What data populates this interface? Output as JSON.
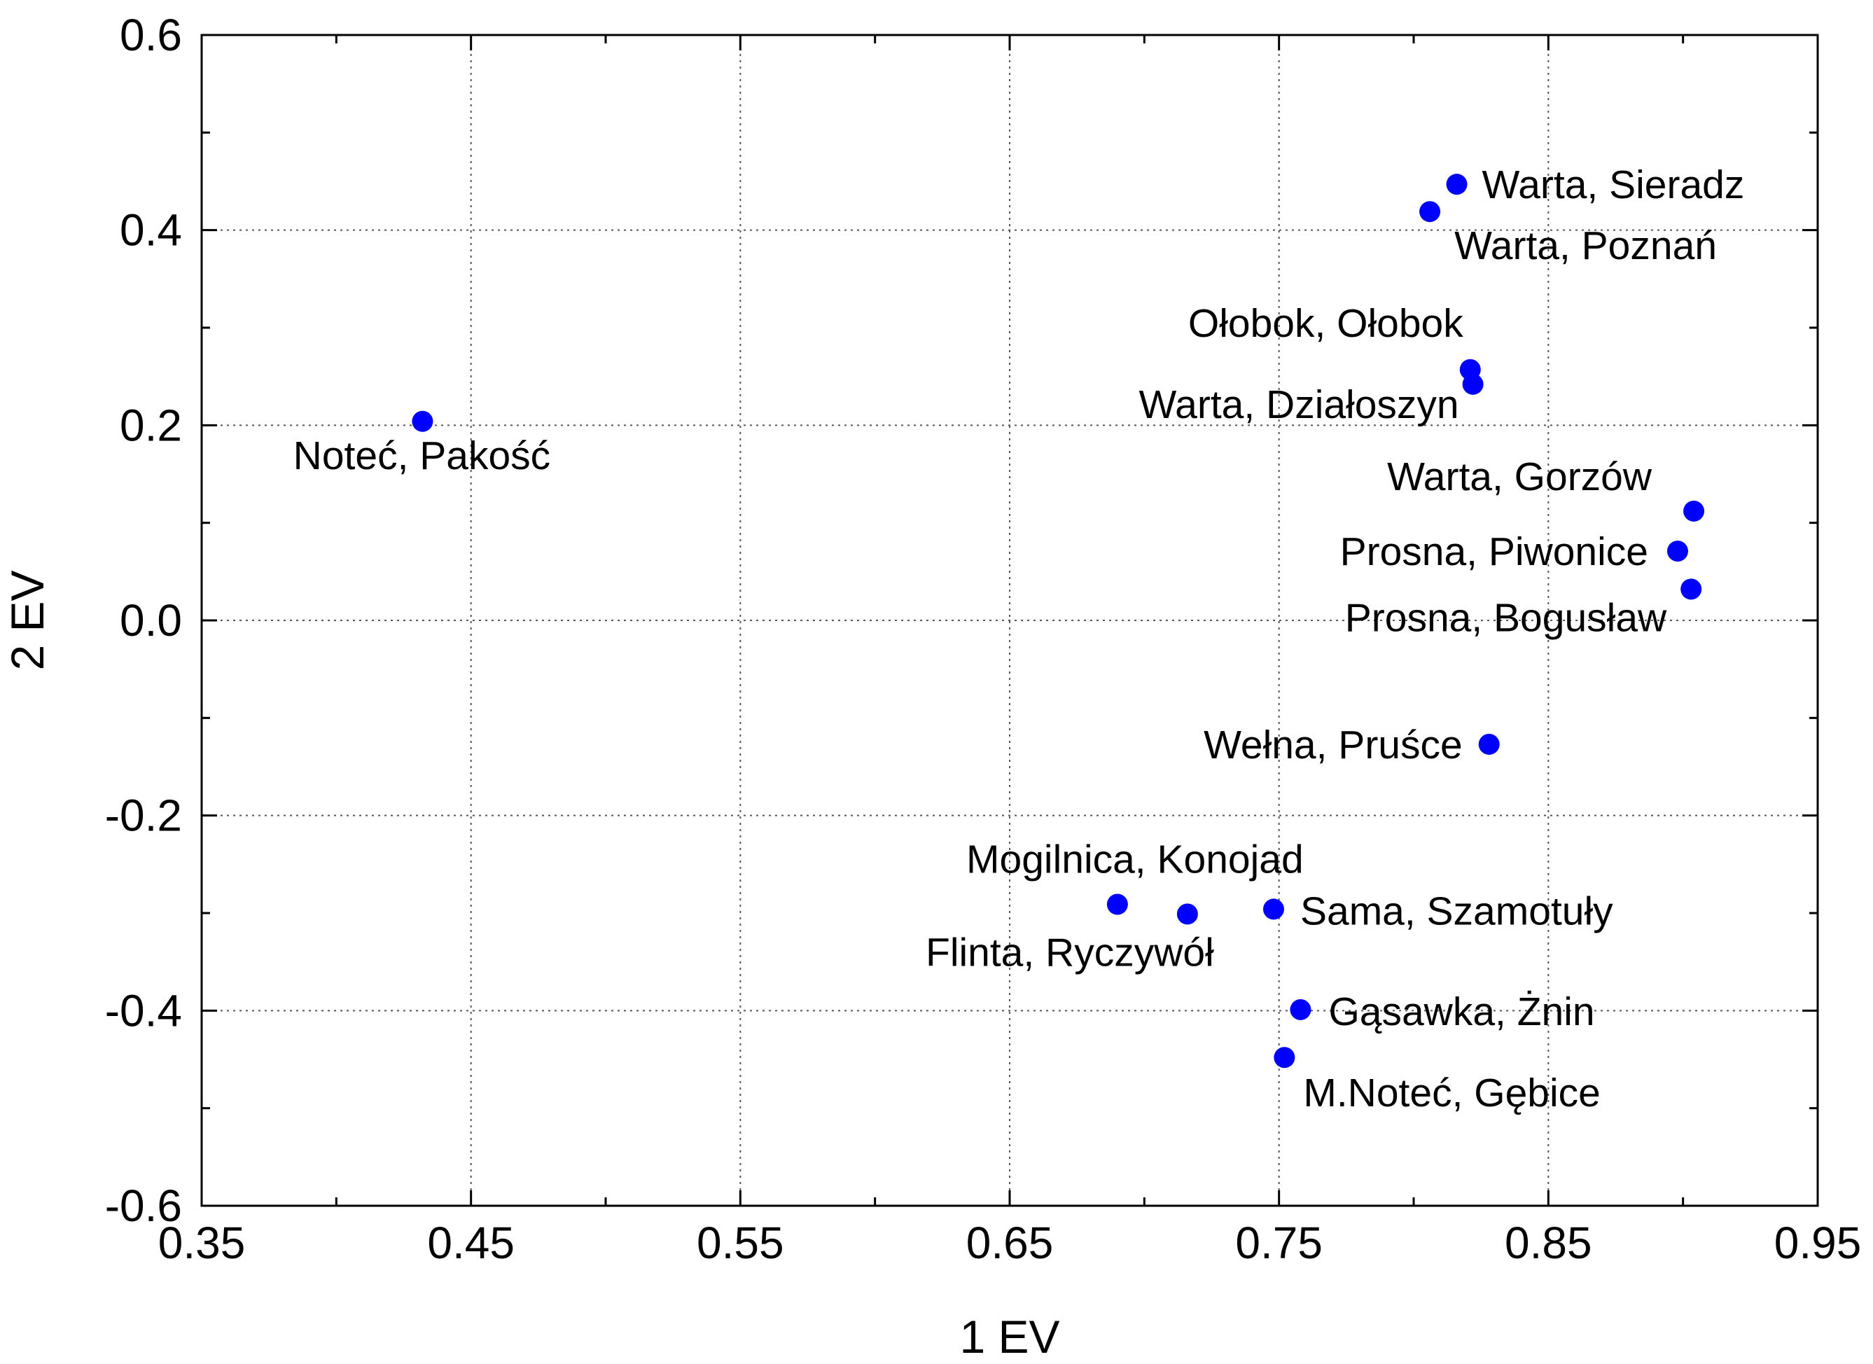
{
  "chart_data": {
    "type": "scatter",
    "title": "",
    "xlabel": "1 EV",
    "ylabel": "2 EV",
    "xlim": [
      0.35,
      0.95
    ],
    "ylim": [
      -0.6,
      0.6
    ],
    "grid": true,
    "x_ticks": [
      0.35,
      0.45,
      0.55,
      0.65,
      0.75,
      0.85,
      0.95
    ],
    "x_tick_labels": [
      "0.35",
      "0.45",
      "0.55",
      "0.65",
      "0.75",
      "0.85",
      "0.95"
    ],
    "y_ticks": [
      -0.6,
      -0.4,
      -0.2,
      0.0,
      0.2,
      0.4,
      0.6
    ],
    "y_tick_labels": [
      "-0.6",
      "-0.4",
      "-0.2",
      "0.0",
      "0.2",
      "0.4",
      "0.6"
    ],
    "point_color": "#0000ff",
    "points": [
      {
        "label": "Warta, Sieradz",
        "x": 0.816,
        "y": 0.447,
        "label_pos": "right"
      },
      {
        "label": "Warta, Poznań",
        "x": 0.806,
        "y": 0.419,
        "label_pos": "below-right"
      },
      {
        "label": "Ołobok, Ołobok",
        "x": 0.821,
        "y": 0.257,
        "label_pos": "above-left"
      },
      {
        "label": "Warta, Działoszyn",
        "x": 0.822,
        "y": 0.242,
        "label_pos": "below-left"
      },
      {
        "label": "Noteć, Pakość",
        "x": 0.432,
        "y": 0.204,
        "label_pos": "below"
      },
      {
        "label": "Warta, Gorzów",
        "x": 0.904,
        "y": 0.112,
        "label_pos": "above-left"
      },
      {
        "label": "Prosna, Piwonice",
        "x": 0.898,
        "y": 0.071,
        "label_pos": "left"
      },
      {
        "label": "Prosna, Bogusław",
        "x": 0.903,
        "y": 0.032,
        "label_pos": "below-left"
      },
      {
        "label": "Wełna, Pruśce",
        "x": 0.828,
        "y": -0.127,
        "label_pos": "left"
      },
      {
        "label": "Mogilnica, Konojad",
        "x": 0.69,
        "y": -0.291,
        "label_pos": "above"
      },
      {
        "label": "Flinta, Ryczywół",
        "x": 0.716,
        "y": -0.301,
        "label_pos": "below"
      },
      {
        "label": "Sama, Szamotuły",
        "x": 0.748,
        "y": -0.296,
        "label_pos": "right"
      },
      {
        "label": "Gąsawka, Żnin",
        "x": 0.758,
        "y": -0.399,
        "label_pos": "right"
      },
      {
        "label": "M.Noteć, Gębice",
        "x": 0.752,
        "y": -0.448,
        "label_pos": "below-right"
      }
    ]
  }
}
